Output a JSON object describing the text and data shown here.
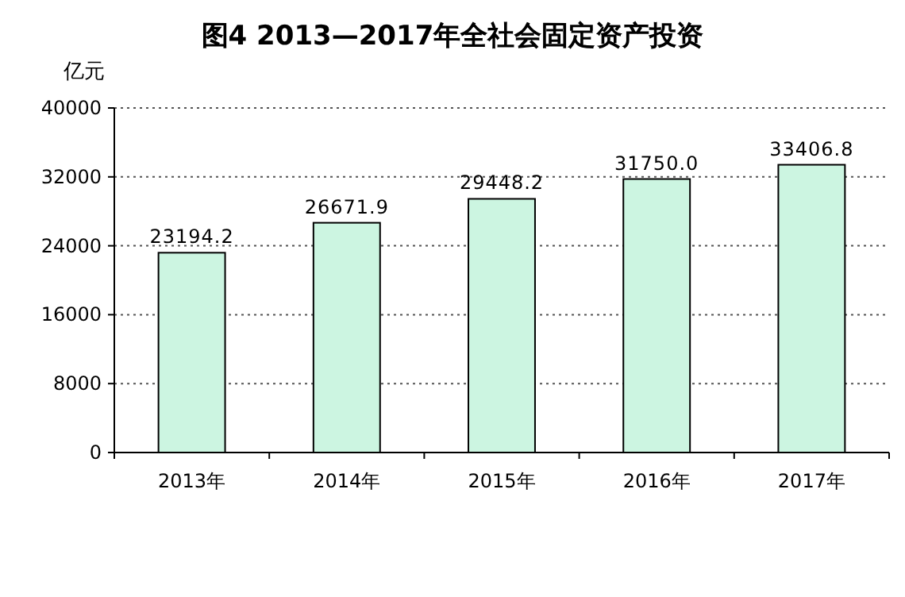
{
  "chart_data": {
    "type": "bar",
    "title": "图4 2013—2017年全社会固定资产投资",
    "ylabel": "亿元",
    "categories": [
      "2013年",
      "2014年",
      "2015年",
      "2016年",
      "2017年"
    ],
    "values": [
      23194.2,
      26671.9,
      29448.2,
      31750.0,
      33406.8
    ],
    "value_labels": [
      "23194.2",
      "26671.9",
      "29448.2",
      "31750.0",
      "33406.8"
    ],
    "color": "#ccf5e1",
    "ylim": [
      0,
      40000
    ],
    "yticks": [
      0,
      8000,
      16000,
      24000,
      32000,
      40000
    ],
    "grid": "y"
  }
}
